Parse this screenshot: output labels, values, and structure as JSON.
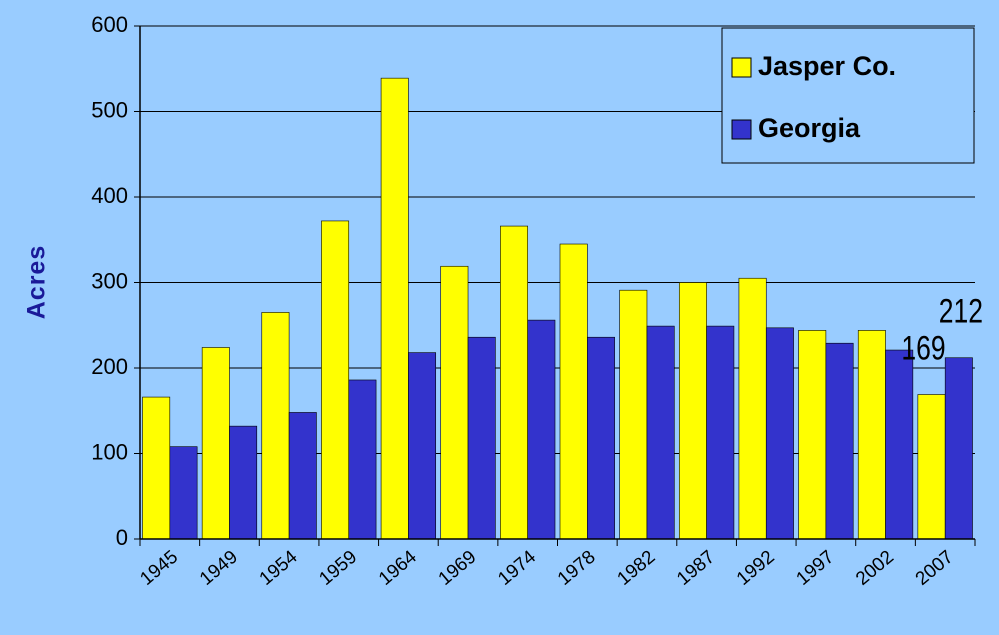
{
  "chart_data": {
    "type": "bar",
    "y_label": "Acres",
    "categories": [
      "1945",
      "1949",
      "1954",
      "1959",
      "1964",
      "1969",
      "1974",
      "1978",
      "1982",
      "1987",
      "1992",
      "1997",
      "2002",
      "2007"
    ],
    "series": [
      {
        "name": "Jasper Co.",
        "color": "#ffff00",
        "values": [
          166,
          224,
          265,
          372,
          539,
          319,
          366,
          345,
          291,
          300,
          305,
          244,
          244,
          169
        ]
      },
      {
        "name": "Georgia",
        "color": "#3333cc",
        "values": [
          108,
          132,
          148,
          186,
          218,
          236,
          256,
          236,
          249,
          249,
          247,
          229,
          221,
          212
        ]
      }
    ],
    "data_labels": "last",
    "ylim": [
      0,
      600
    ],
    "yticks": [
      0,
      100,
      200,
      300,
      400,
      500,
      600
    ],
    "grid": true,
    "legend": "top-right"
  }
}
